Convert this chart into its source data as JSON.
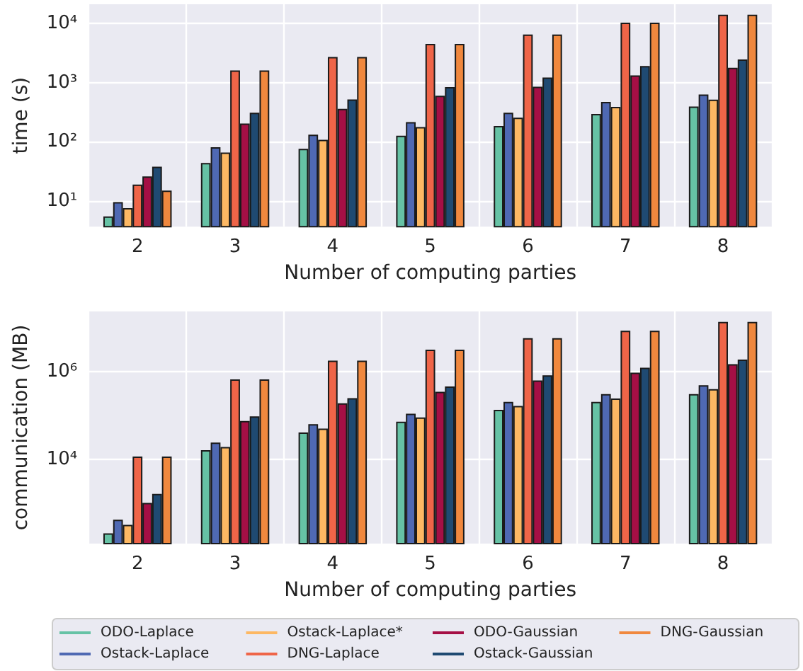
{
  "chart_data": [
    {
      "type": "bar",
      "xlabel": "Number of computing parties",
      "ylabel": "time (s)",
      "log": "y",
      "grid": true,
      "categories": [
        "2",
        "3",
        "4",
        "5",
        "6",
        "7",
        "8"
      ],
      "ylim": [
        3.7,
        21000
      ],
      "yticks": [
        {
          "value": 10,
          "label": "10¹"
        },
        {
          "value": 100,
          "label": "10²"
        },
        {
          "value": 1000,
          "label": "10³"
        },
        {
          "value": 10000,
          "label": "10⁴"
        }
      ],
      "series": [
        {
          "color": "#66c2a5",
          "values": [
            5.5,
            44,
            76,
            127,
            185,
            295,
            395
          ]
        },
        {
          "color": "#4f69b3",
          "values": [
            9.6,
            81,
            132,
            215,
            310,
            470,
            630
          ]
        },
        {
          "color": "#fdb863",
          "values": [
            7.6,
            66,
            108,
            178,
            255,
            390,
            515
          ]
        },
        {
          "color": "#ef6548",
          "values": [
            19,
            1600,
            2700,
            4500,
            6500,
            10300,
            14000
          ]
        },
        {
          "color": "#a50f45",
          "values": [
            26,
            204,
            360,
            600,
            850,
            1320,
            1780
          ]
        },
        {
          "color": "#1f4a72",
          "values": [
            38,
            310,
            520,
            840,
            1220,
            1900,
            2450
          ]
        },
        {
          "color": "#f0883e",
          "values": [
            15,
            1600,
            2700,
            4500,
            6500,
            10300,
            14000
          ]
        }
      ]
    },
    {
      "type": "bar",
      "xlabel": "Number of computing parties",
      "ylabel": "communication (MB)",
      "log": "y",
      "grid": true,
      "legend": "bottom",
      "categories": [
        "2",
        "3",
        "4",
        "5",
        "6",
        "7",
        "8"
      ],
      "ylim": [
        117,
        24000000
      ],
      "yticks": [
        {
          "value": 10000,
          "label": "10⁴"
        },
        {
          "value": 1000000,
          "label": "10⁶"
        }
      ],
      "series": [
        {
          "name": "ODO-Laplace",
          "color": "#66c2a5",
          "values": [
            200,
            16000,
            41000,
            72000,
            135000,
            205000,
            310000
          ]
        },
        {
          "name": "Ostack-Laplace",
          "color": "#4f69b3",
          "values": [
            410,
            24000,
            63000,
            110000,
            205000,
            310000,
            490000
          ]
        },
        {
          "name": "Ostack-Laplace*",
          "color": "#fdb863",
          "values": [
            315,
            19000,
            50000,
            90000,
            165000,
            245000,
            400000
          ]
        },
        {
          "name": "DNG-Laplace",
          "color": "#ef6548",
          "values": [
            11500,
            670000,
            1800000,
            3200000,
            5900000,
            8700000,
            13800000
          ]
        },
        {
          "name": "ODO-Gaussian",
          "color": "#a50f45",
          "values": [
            1000,
            75000,
            190000,
            350000,
            630000,
            950000,
            1490000
          ]
        },
        {
          "name": "Ostack-Gaussian",
          "color": "#1f4a72",
          "values": [
            1600,
            95000,
            250000,
            460000,
            830000,
            1240000,
            1900000
          ]
        },
        {
          "name": "DNG-Gaussian",
          "color": "#f0883e",
          "values": [
            11500,
            670000,
            1800000,
            3200000,
            5900000,
            8700000,
            13800000
          ]
        }
      ]
    }
  ]
}
